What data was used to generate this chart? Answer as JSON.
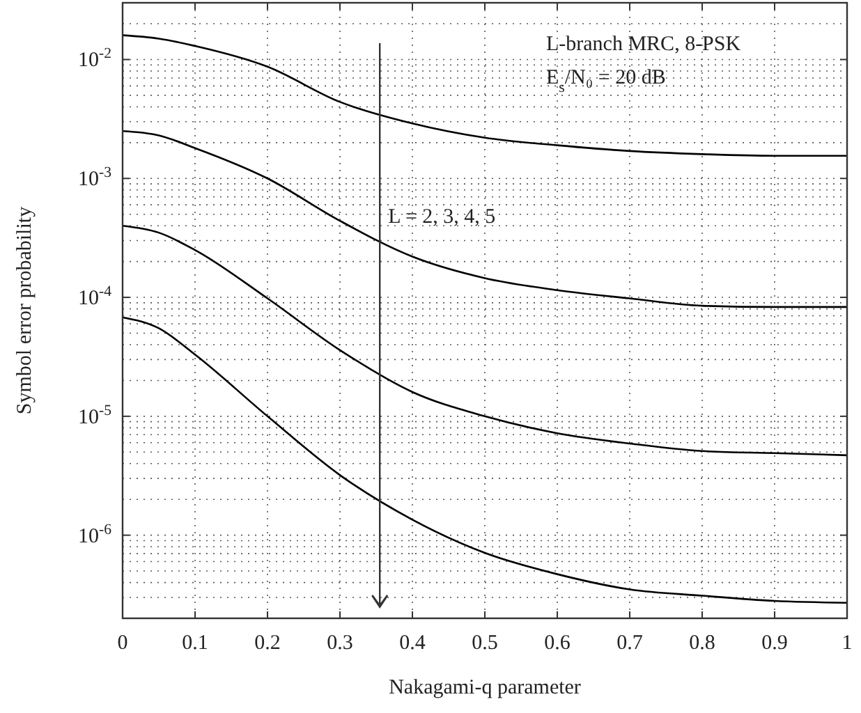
{
  "chart_data": {
    "type": "line",
    "xlabel": "Nakagami-q parameter",
    "ylabel": "Symbol error probability",
    "x": [
      0,
      0.05,
      0.1,
      0.2,
      0.3,
      0.4,
      0.5,
      0.6,
      0.7,
      0.8,
      0.9,
      1
    ],
    "series": [
      {
        "color": "#000000",
        "values": [
          0.016,
          0.015,
          0.013,
          0.0087,
          0.0044,
          0.0029,
          0.0022,
          0.0019,
          0.0017,
          0.0016,
          0.00155,
          0.00155
        ]
      },
      {
        "color": "#000000",
        "values": [
          0.0025,
          0.0023,
          0.0018,
          0.001,
          0.00044,
          0.00022,
          0.000145,
          0.000115,
          9.8e-05,
          8.5e-05,
          8.3e-05,
          8.3e-05
        ]
      },
      {
        "color": "#000000",
        "values": [
          0.0004,
          0.00035,
          0.00025,
          9.8e-05,
          3.6e-05,
          1.6e-05,
          1e-05,
          7.2e-06,
          5.9e-06,
          5.1e-06,
          4.9e-06,
          4.7e-06
        ]
      },
      {
        "color": "#000000",
        "values": [
          6.8e-05,
          5.5e-05,
          3.3e-05,
          1e-05,
          3.2e-06,
          1.35e-06,
          7.1e-07,
          4.7e-07,
          3.5e-07,
          3.1e-07,
          2.8e-07,
          2.7e-07
        ]
      }
    ],
    "xlim": [
      0,
      1
    ],
    "xticks": [
      0,
      0.1,
      0.2,
      0.3,
      0.4,
      0.5,
      0.6,
      0.7,
      0.8,
      0.9,
      1
    ],
    "ylim": [
      2e-07,
      0.03
    ],
    "log": true,
    "yticks": [
      {
        "value": 0.01,
        "label": "10$^{-2}$"
      },
      {
        "value": 0.001,
        "label": "10$^{-3}$"
      },
      {
        "value": 0.0001,
        "label": "10$^{-4}$"
      },
      {
        "value": 1e-05,
        "label": "10$^{-5}$"
      },
      {
        "value": 1e-06,
        "label": "10$^{-6}$"
      }
    ],
    "grid": true,
    "line_style": "solid",
    "marker": "none",
    "annotations": [
      "L-branch MRC, 8-PSK",
      "E$_{s}$/N₀ = 20 dB",
      "L = 2, 3, 4, 5"
    ]
  }
}
